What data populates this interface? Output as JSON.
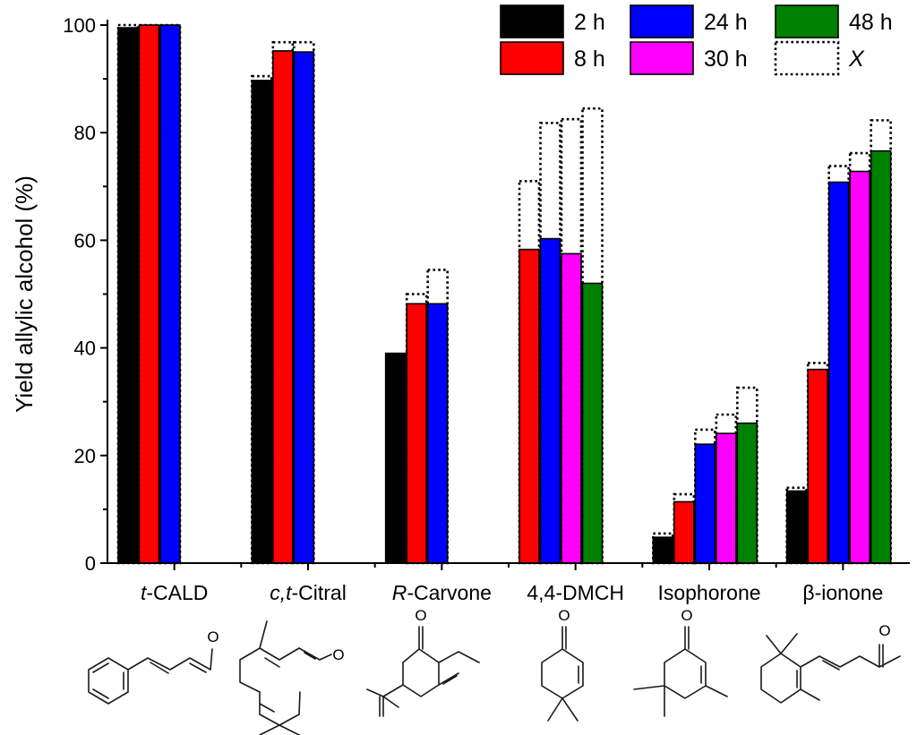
{
  "chart_data": {
    "type": "bar",
    "ylabel": "Yield allylic alcohol (%)",
    "xlabel": "",
    "ylim": [
      0,
      100
    ],
    "yticks": [
      0,
      20,
      40,
      60,
      80,
      100
    ],
    "categories": [
      {
        "pre": "t",
        "post": "-CALD"
      },
      {
        "pre": "c,t",
        "post": "-Citral"
      },
      {
        "pre": "R",
        "post": "-Carvone"
      },
      {
        "pre": "",
        "post": "4,4-DMCH"
      },
      {
        "pre": "",
        "post": "Isophorone"
      },
      {
        "pre": "",
        "post": "β-ionone"
      }
    ],
    "series": [
      {
        "name": "2 h",
        "color": "#000000",
        "values": [
          99.5,
          89.7,
          39.0,
          null,
          4.8,
          13.4
        ]
      },
      {
        "name": "8 h",
        "color": "#ff0000",
        "values": [
          100,
          95.2,
          48.2,
          58.3,
          11.4,
          36.0
        ]
      },
      {
        "name": "24 h",
        "color": "#0000ff",
        "values": [
          100,
          95.0,
          48.2,
          60.3,
          22.1,
          70.8
        ]
      },
      {
        "name": "30 h",
        "color": "#ff00ff",
        "values": [
          null,
          null,
          null,
          57.5,
          24.1,
          72.8
        ]
      },
      {
        "name": "48 h",
        "color": "#008000",
        "values": [
          null,
          null,
          null,
          52.0,
          26.0,
          76.6
        ]
      }
    ],
    "conversion": {
      "name": "X",
      "style": "dotted-outline",
      "values": [
        [
          100,
          90.5,
          null,
          null,
          5.5,
          14.0
        ],
        [
          100,
          96.8,
          50.0,
          71.0,
          12.8,
          37.2
        ],
        [
          100,
          96.8,
          54.5,
          81.8,
          24.8,
          73.8
        ],
        [
          null,
          null,
          null,
          82.5,
          27.6,
          76.2
        ],
        [
          null,
          null,
          null,
          84.5,
          32.6,
          82.3
        ]
      ]
    },
    "legend": {
      "position": "top-right",
      "entries": [
        {
          "label": "2 h",
          "color": "#000000"
        },
        {
          "label": "24 h",
          "color": "#0000ff"
        },
        {
          "label": "48 h",
          "color": "#008000"
        },
        {
          "label": "8 h",
          "color": "#ff0000"
        },
        {
          "label": "30 h",
          "color": "#ff00ff"
        },
        {
          "label": "X",
          "color": "none",
          "italic": true
        }
      ]
    },
    "structures": {
      "carbonyl_atom": "O"
    },
    "grid": false
  }
}
